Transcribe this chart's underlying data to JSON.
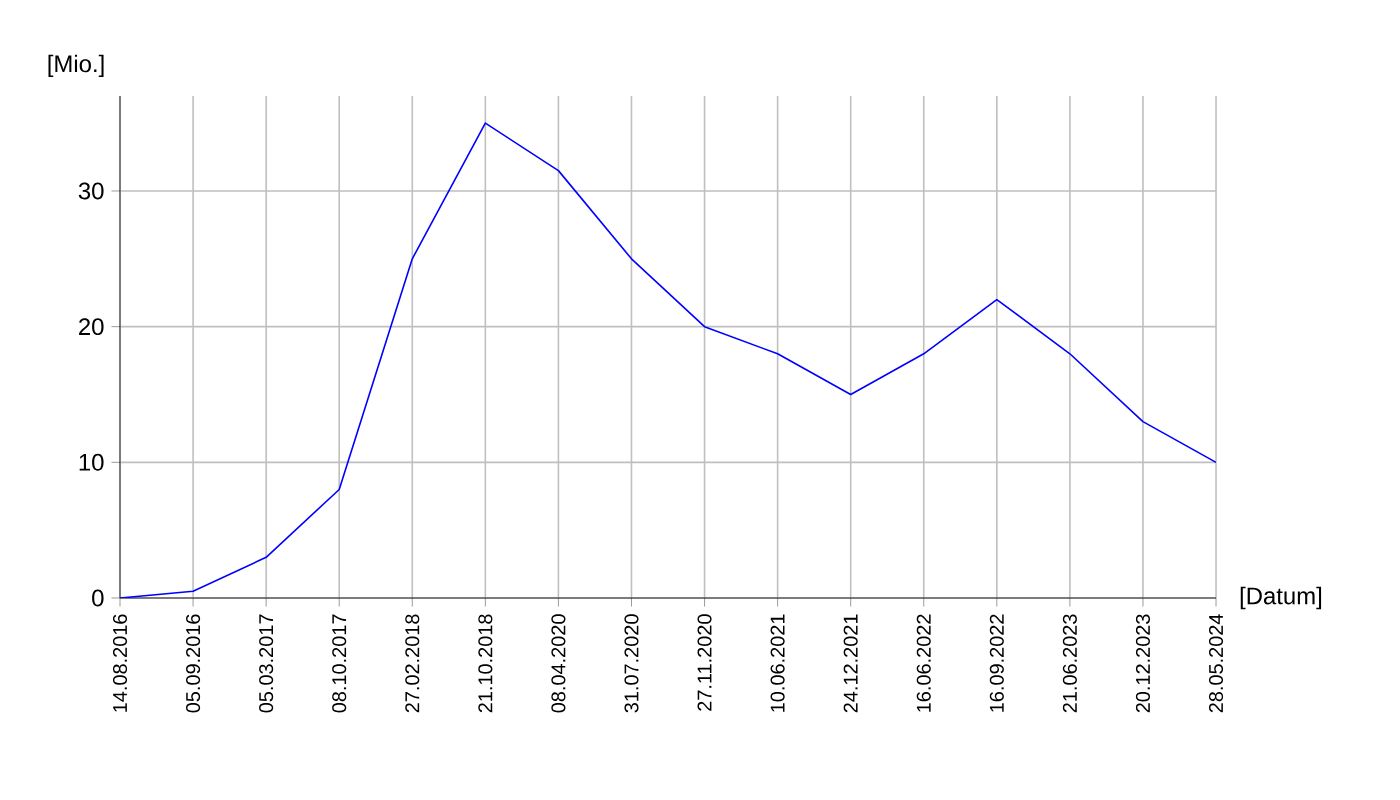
{
  "chart_data": {
    "type": "line",
    "xlabel": "[Datum]",
    "ylabel": "[Mio.]",
    "categories": [
      "14.08.2016",
      "05.09.2016",
      "05.03.2017",
      "08.10.2017",
      "27.02.2018",
      "21.10.2018",
      "08.04.2020",
      "31.07.2020",
      "27.11.2020",
      "10.06.2021",
      "24.12.2021",
      "16.06.2022",
      "16.09.2022",
      "21.06.2023",
      "20.12.2023",
      "28.05.2024"
    ],
    "series": [
      {
        "color": "#0000ff",
        "values": [
          0,
          0.5,
          3,
          8,
          25,
          35,
          31.5,
          25,
          20,
          18,
          15,
          18,
          22,
          18,
          13,
          10
        ]
      }
    ],
    "ylim": [
      0,
      37
    ],
    "yticks": [
      0,
      10,
      20,
      30
    ],
    "grid": true,
    "marker": "none",
    "line_style": "solid"
  }
}
